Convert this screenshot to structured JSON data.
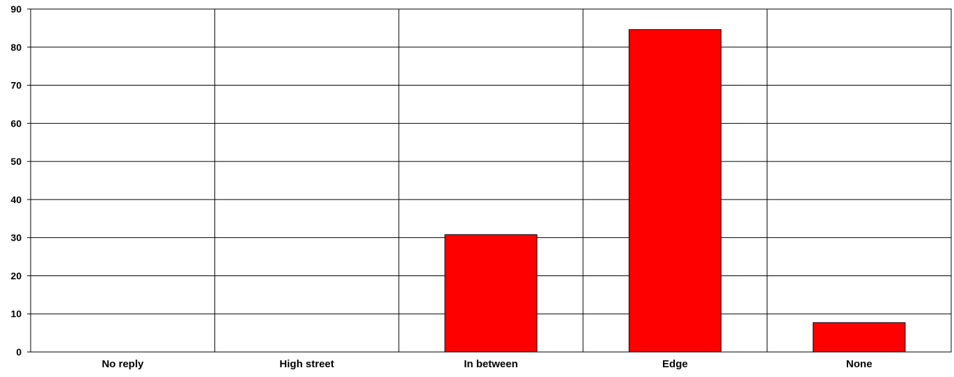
{
  "chart_data": {
    "type": "bar",
    "categories": [
      "No reply",
      "High street",
      "In between",
      "Edge",
      "None"
    ],
    "values": [
      0,
      0,
      30.8,
      84.6,
      7.7
    ],
    "ylim": [
      0,
      90
    ],
    "yticks": [
      0,
      10,
      20,
      30,
      40,
      50,
      60,
      70,
      80,
      90
    ],
    "grid": true,
    "legend": "none",
    "colors": {
      "bar": "#ff0000",
      "bar_stroke": "#000000",
      "grid": "#000000",
      "background": "#ffffff"
    }
  }
}
